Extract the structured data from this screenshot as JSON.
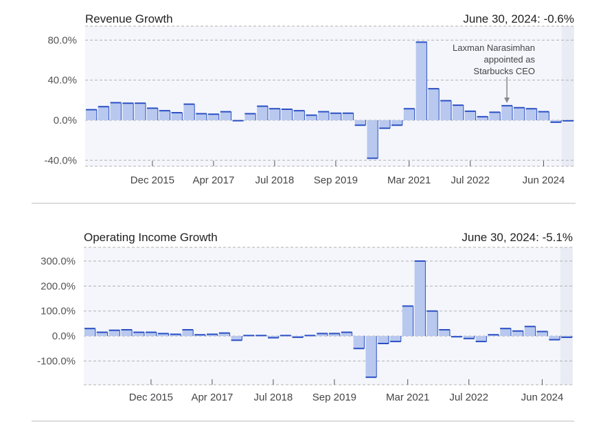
{
  "colors": {
    "bar_fill": "#b8c8ee",
    "bar_edge": "#2a4fc4",
    "plot_bg": "#f4f6fc",
    "shade_bg": "#e9ecf5",
    "grid": "#b0b0b0",
    "divider": "#d0d0d0"
  },
  "chart_data": [
    {
      "type": "bar",
      "title": "Revenue Growth",
      "summary": "June 30, 2024: -0.6%",
      "ylabel": "",
      "xlabel": "",
      "ylim": [
        -46,
        94
      ],
      "yticks": [
        80,
        40,
        0,
        -40
      ],
      "ytick_labels": [
        "80.0%",
        "40.0%",
        "0.0%",
        "-40.0%"
      ],
      "xtick_labels": [
        "Dec 2015",
        "Apr 2017",
        "Jul 2018",
        "Sep 2019",
        "Mar 2021",
        "Jul 2022",
        "Jun 2024"
      ],
      "xtick_index": [
        5.5,
        10.5,
        15.5,
        20.5,
        26.5,
        31.5,
        37.5
      ],
      "values": [
        10.5,
        13.5,
        17.5,
        17.0,
        17.0,
        12.0,
        9.5,
        7.5,
        16.0,
        6.5,
        6.0,
        8.5,
        -0.5,
        6.5,
        14.0,
        11.5,
        11.0,
        9.5,
        5.0,
        8.5,
        7.0,
        7.0,
        -5.0,
        -38.0,
        -8.0,
        -5.0,
        11.5,
        78.0,
        31.5,
        19.5,
        15.0,
        9.0,
        3.5,
        8.0,
        14.5,
        12.5,
        11.5,
        8.5,
        -2.0,
        -0.6
      ],
      "annotation": {
        "lines": [
          "Laxman Narasimhan",
          "appointed as",
          "Starbucks CEO"
        ],
        "index": 34
      }
    },
    {
      "type": "bar",
      "title": "Operating Income Growth",
      "summary": "June 30, 2024: -5.1%",
      "ylabel": "",
      "xlabel": "",
      "ylim": [
        -195,
        355
      ],
      "yticks": [
        300,
        200,
        100,
        0,
        -100
      ],
      "ytick_labels": [
        "300.0%",
        "200.0%",
        "100.0%",
        "0.0%",
        "-100.0%"
      ],
      "xtick_labels": [
        "Dec 2015",
        "Apr 2017",
        "Jul 2018",
        "Sep 2019",
        "Mar 2021",
        "Jul 2022",
        "Jun 2024"
      ],
      "xtick_index": [
        5.5,
        10.5,
        15.5,
        20.5,
        26.5,
        31.5,
        37.5
      ],
      "values": [
        30,
        15,
        23,
        25,
        15,
        15,
        10,
        7,
        25,
        5,
        7,
        12,
        -17,
        2,
        2,
        -7,
        2,
        -5,
        2,
        10,
        10,
        15,
        -50,
        -165,
        -30,
        -22,
        120,
        300,
        100,
        25,
        -3,
        -10,
        -22,
        5,
        30,
        20,
        38,
        18,
        -15,
        -5.1
      ]
    }
  ]
}
